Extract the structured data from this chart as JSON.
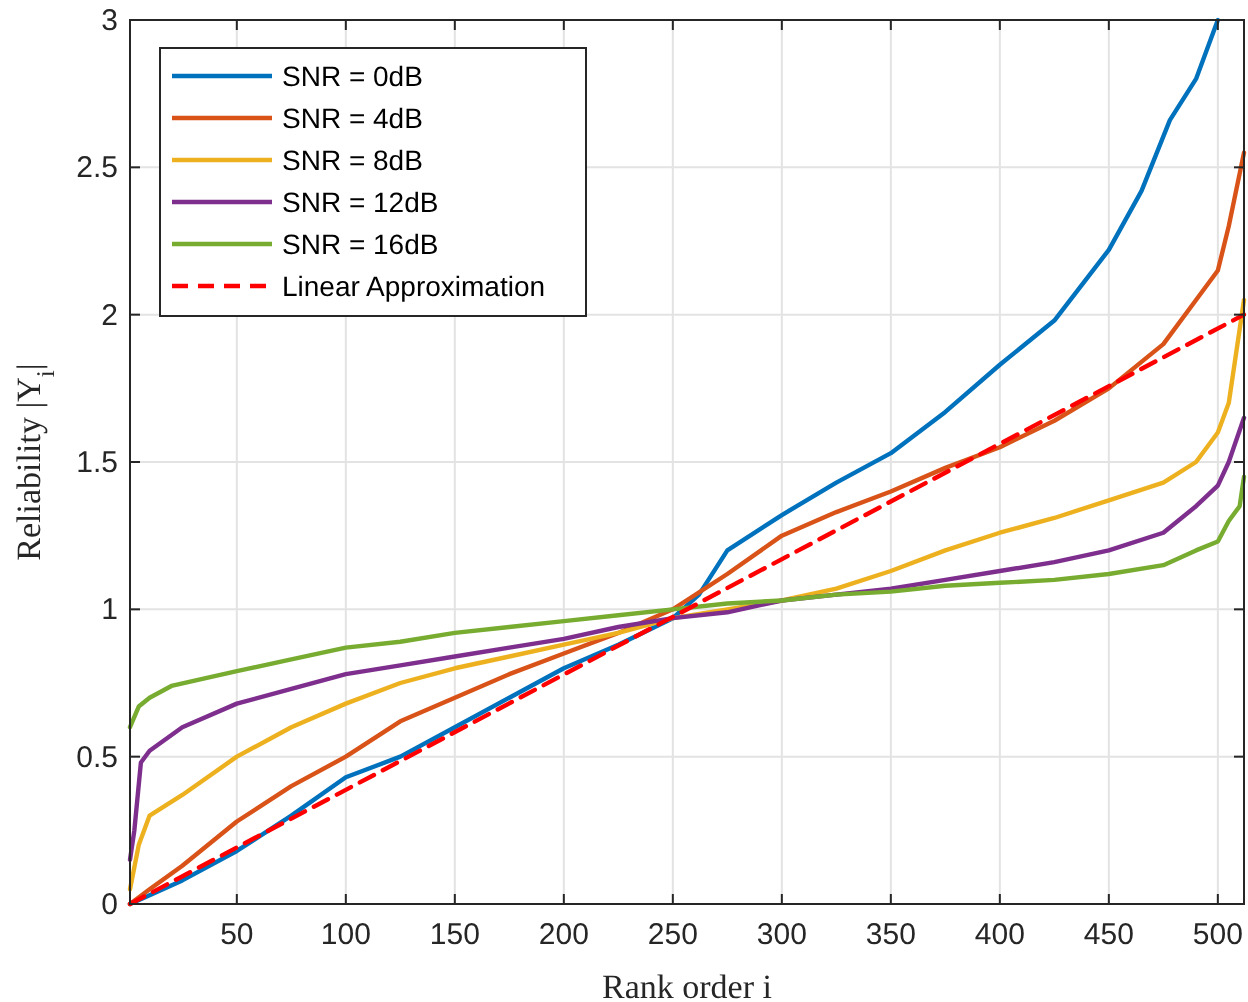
{
  "chart_data": {
    "type": "line",
    "xlabel": "Rank order i",
    "ylabel": "Reliability |Y$_{i}$|",
    "xlim": [
      1,
      512
    ],
    "ylim": [
      0,
      3
    ],
    "xticks": [
      50,
      100,
      150,
      200,
      250,
      300,
      350,
      400,
      450,
      500
    ],
    "yticks": [
      0,
      0.5,
      1,
      1.5,
      2,
      2.5,
      3
    ],
    "grid": true,
    "legend": "top left",
    "line_style": "solid",
    "marker": "none",
    "series": [
      {
        "name": "SNR = 0dB",
        "color": "#0072bd",
        "x": [
          1,
          10,
          25,
          50,
          75,
          100,
          125,
          150,
          175,
          200,
          225,
          250,
          262,
          275,
          300,
          325,
          350,
          375,
          400,
          425,
          450,
          465,
          478,
          490,
          500
        ],
        "values": [
          0,
          0.03,
          0.08,
          0.18,
          0.3,
          0.43,
          0.5,
          0.6,
          0.7,
          0.8,
          0.88,
          0.97,
          1.05,
          1.2,
          1.32,
          1.43,
          1.53,
          1.67,
          1.83,
          1.98,
          2.22,
          2.42,
          2.66,
          2.8,
          3.0
        ]
      },
      {
        "name": "SNR = 4dB",
        "color": "#d95319",
        "x": [
          1,
          10,
          25,
          50,
          75,
          100,
          125,
          150,
          175,
          200,
          225,
          250,
          275,
          300,
          325,
          350,
          375,
          400,
          425,
          450,
          475,
          490,
          500,
          505,
          512
        ],
        "values": [
          0,
          0.05,
          0.13,
          0.28,
          0.4,
          0.5,
          0.62,
          0.7,
          0.78,
          0.85,
          0.92,
          1.0,
          1.12,
          1.25,
          1.33,
          1.4,
          1.48,
          1.55,
          1.64,
          1.75,
          1.9,
          2.05,
          2.15,
          2.3,
          2.55
        ]
      },
      {
        "name": "SNR = 8dB",
        "color": "#edb120",
        "x": [
          1,
          5,
          10,
          25,
          50,
          75,
          100,
          125,
          150,
          175,
          200,
          225,
          250,
          275,
          300,
          325,
          350,
          375,
          400,
          425,
          450,
          475,
          490,
          500,
          505,
          512
        ],
        "values": [
          0.05,
          0.2,
          0.3,
          0.37,
          0.5,
          0.6,
          0.68,
          0.75,
          0.8,
          0.84,
          0.88,
          0.92,
          0.97,
          1.0,
          1.03,
          1.07,
          1.13,
          1.2,
          1.26,
          1.31,
          1.37,
          1.43,
          1.5,
          1.6,
          1.7,
          2.05
        ]
      },
      {
        "name": "SNR = 12dB",
        "color": "#7e2f8e",
        "x": [
          1,
          3,
          6,
          10,
          25,
          50,
          75,
          100,
          125,
          150,
          175,
          200,
          225,
          250,
          275,
          300,
          325,
          350,
          375,
          400,
          425,
          450,
          475,
          490,
          500,
          505,
          512
        ],
        "values": [
          0.15,
          0.25,
          0.48,
          0.52,
          0.6,
          0.68,
          0.73,
          0.78,
          0.81,
          0.84,
          0.87,
          0.9,
          0.94,
          0.97,
          0.99,
          1.03,
          1.05,
          1.07,
          1.1,
          1.13,
          1.16,
          1.2,
          1.26,
          1.35,
          1.42,
          1.5,
          1.65
        ]
      },
      {
        "name": "SNR = 16dB",
        "color": "#77ac30",
        "x": [
          1,
          5,
          10,
          20,
          50,
          75,
          100,
          125,
          150,
          175,
          200,
          225,
          250,
          275,
          300,
          325,
          350,
          375,
          400,
          425,
          450,
          475,
          490,
          500,
          505,
          510,
          512
        ],
        "values": [
          0.6,
          0.67,
          0.7,
          0.74,
          0.79,
          0.83,
          0.87,
          0.89,
          0.92,
          0.94,
          0.96,
          0.98,
          1.0,
          1.02,
          1.03,
          1.05,
          1.06,
          1.08,
          1.09,
          1.1,
          1.12,
          1.15,
          1.2,
          1.23,
          1.3,
          1.35,
          1.45
        ]
      },
      {
        "name": "Linear Approximation",
        "color": "#ff0000",
        "line_style": "dashed",
        "x": [
          1,
          512
        ],
        "values": [
          0,
          2
        ]
      }
    ]
  }
}
